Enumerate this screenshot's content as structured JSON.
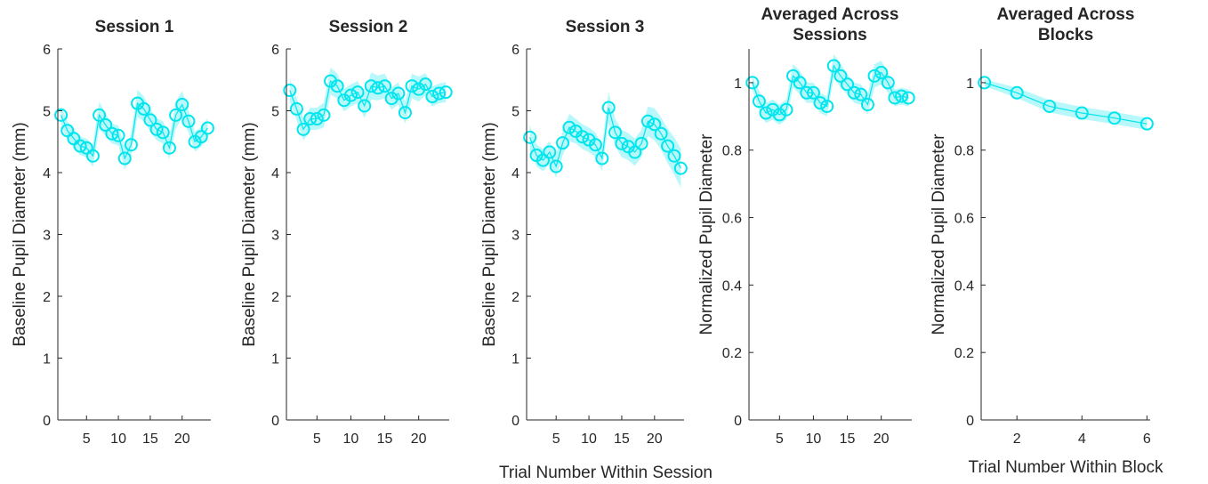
{
  "chart_data": [
    {
      "type": "line",
      "title": "Session 1",
      "xlabel": "",
      "ylabel": "Baseline Pupil Diameter (mm)",
      "xlim": [
        0.5,
        24.5
      ],
      "ylim": [
        0,
        6
      ],
      "xticks": [
        5,
        10,
        15,
        20
      ],
      "yticks": [
        0,
        1,
        2,
        3,
        4,
        5,
        6
      ],
      "grid": false,
      "color": "#00e5ee",
      "x": [
        1,
        2,
        3,
        4,
        5,
        6,
        7,
        8,
        9,
        10,
        11,
        12,
        13,
        14,
        15,
        16,
        17,
        18,
        19,
        20,
        21,
        22,
        23,
        24
      ],
      "values": [
        4.93,
        4.68,
        4.55,
        4.43,
        4.4,
        4.27,
        4.93,
        4.77,
        4.63,
        4.6,
        4.23,
        4.45,
        5.12,
        5.03,
        4.85,
        4.7,
        4.65,
        4.4,
        4.93,
        5.1,
        4.83,
        4.5,
        4.58,
        4.72
      ],
      "error": [
        0.15,
        0.15,
        0.15,
        0.15,
        0.15,
        0.18,
        0.22,
        0.18,
        0.16,
        0.16,
        0.18,
        0.18,
        0.22,
        0.2,
        0.18,
        0.18,
        0.18,
        0.18,
        0.22,
        0.22,
        0.18,
        0.16,
        0.16,
        0.16
      ]
    },
    {
      "type": "line",
      "title": "Session 2",
      "xlabel": "",
      "ylabel": "Baseline Pupil Diameter (mm)",
      "xlim": [
        0.5,
        24.5
      ],
      "ylim": [
        0,
        6
      ],
      "xticks": [
        5,
        10,
        15,
        20
      ],
      "yticks": [
        0,
        1,
        2,
        3,
        4,
        5,
        6
      ],
      "grid": false,
      "color": "#00e5ee",
      "x": [
        1,
        2,
        3,
        4,
        5,
        6,
        7,
        8,
        9,
        10,
        11,
        12,
        13,
        14,
        15,
        16,
        17,
        18,
        19,
        20,
        21,
        22,
        23,
        24
      ],
      "values": [
        5.33,
        5.03,
        4.7,
        4.87,
        4.87,
        4.93,
        5.48,
        5.4,
        5.17,
        5.25,
        5.3,
        5.08,
        5.4,
        5.37,
        5.4,
        5.2,
        5.28,
        4.97,
        5.4,
        5.35,
        5.43,
        5.23,
        5.28,
        5.3
      ],
      "error": [
        0.18,
        0.18,
        0.18,
        0.18,
        0.18,
        0.2,
        0.22,
        0.2,
        0.18,
        0.18,
        0.18,
        0.2,
        0.22,
        0.2,
        0.2,
        0.18,
        0.18,
        0.18,
        0.2,
        0.2,
        0.18,
        0.16,
        0.16,
        0.16
      ]
    },
    {
      "type": "line",
      "title": "Session 3",
      "xlabel": "Trial Number Within Session",
      "ylabel": "Baseline Pupil Diameter (mm)",
      "xlim": [
        0.5,
        24.5
      ],
      "ylim": [
        0,
        6
      ],
      "xticks": [
        5,
        10,
        15,
        20
      ],
      "yticks": [
        0,
        1,
        2,
        3,
        4,
        5,
        6
      ],
      "grid": false,
      "color": "#00e5ee",
      "x": [
        1,
        2,
        3,
        4,
        5,
        6,
        7,
        8,
        9,
        10,
        11,
        12,
        13,
        14,
        15,
        16,
        17,
        18,
        19,
        20,
        21,
        22,
        23,
        24
      ],
      "values": [
        4.57,
        4.28,
        4.2,
        4.33,
        4.1,
        4.48,
        4.73,
        4.67,
        4.58,
        4.53,
        4.45,
        4.23,
        5.05,
        4.65,
        4.47,
        4.42,
        4.33,
        4.47,
        4.83,
        4.78,
        4.63,
        4.43,
        4.27,
        4.07
      ],
      "error": [
        0.2,
        0.18,
        0.18,
        0.18,
        0.18,
        0.2,
        0.22,
        0.2,
        0.2,
        0.2,
        0.2,
        0.2,
        0.25,
        0.22,
        0.22,
        0.22,
        0.22,
        0.22,
        0.24,
        0.26,
        0.26,
        0.28,
        0.3,
        0.32
      ]
    },
    {
      "type": "line",
      "title": "Averaged Across Sessions",
      "xlabel": "",
      "ylabel": "Normalized Pupil Diameter",
      "xlim": [
        0.5,
        24.5
      ],
      "ylim": [
        0,
        1.1
      ],
      "xticks": [
        5,
        10,
        15,
        20
      ],
      "yticks": [
        0,
        0.2,
        0.4,
        0.6,
        0.8,
        1
      ],
      "grid": false,
      "color": "#00e5ee",
      "x": [
        1,
        2,
        3,
        4,
        5,
        6,
        7,
        8,
        9,
        10,
        11,
        12,
        13,
        14,
        15,
        16,
        17,
        18,
        19,
        20,
        21,
        22,
        23,
        24
      ],
      "values": [
        1.0,
        0.945,
        0.91,
        0.92,
        0.905,
        0.92,
        1.02,
        1.0,
        0.97,
        0.97,
        0.94,
        0.93,
        1.05,
        1.02,
        0.995,
        0.97,
        0.965,
        0.935,
        1.02,
        1.03,
        1.0,
        0.955,
        0.96,
        0.955
      ],
      "error": [
        0.02,
        0.03,
        0.03,
        0.03,
        0.03,
        0.03,
        0.035,
        0.035,
        0.03,
        0.03,
        0.03,
        0.03,
        0.035,
        0.035,
        0.03,
        0.03,
        0.03,
        0.03,
        0.035,
        0.035,
        0.03,
        0.025,
        0.025,
        0.025
      ]
    },
    {
      "type": "line",
      "title": "Averaged Across Blocks",
      "xlabel": "Trial Number Within Block",
      "ylabel": "Normalized Pupil Diameter",
      "xlim": [
        0.9,
        6.1
      ],
      "ylim": [
        0,
        1.1
      ],
      "xticks": [
        2,
        4,
        6
      ],
      "yticks": [
        0,
        0.2,
        0.4,
        0.6,
        0.8,
        1
      ],
      "grid": false,
      "color": "#00e5ee",
      "x": [
        1,
        2,
        3,
        4,
        5,
        6
      ],
      "values": [
        1.0,
        0.97,
        0.93,
        0.91,
        0.895,
        0.878
      ],
      "error": [
        0.01,
        0.015,
        0.018,
        0.018,
        0.018,
        0.018
      ]
    }
  ]
}
